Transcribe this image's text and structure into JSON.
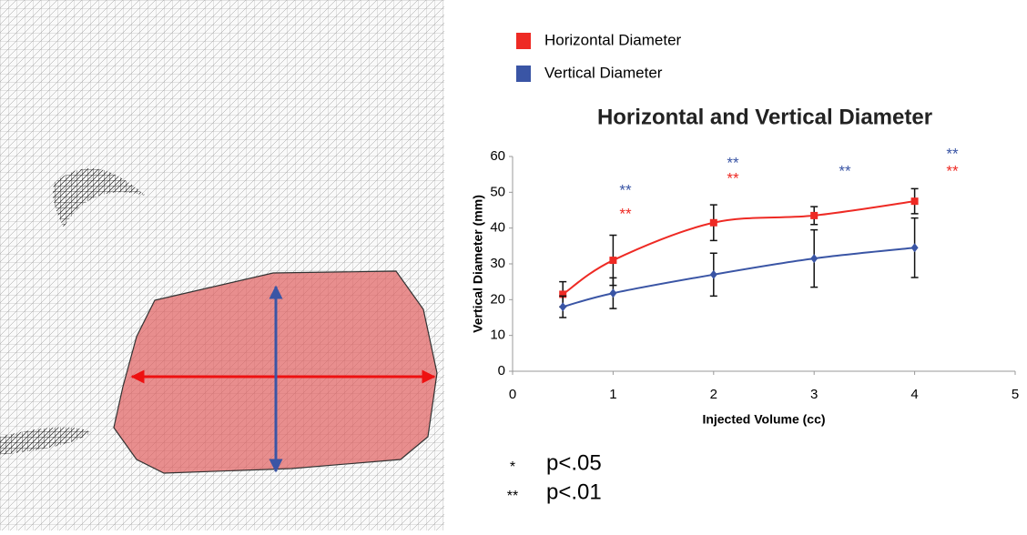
{
  "chart_data": {
    "type": "line",
    "title": "Horizontal and Vertical Diameter",
    "x_label": "Injected Volume (cc)",
    "y_label": "Vertical Diameter (mm)",
    "x": [
      0.5,
      1,
      2,
      3,
      4
    ],
    "series": [
      {
        "name": "Horizontal Diameter",
        "color": "#ee2a24",
        "marker": "square",
        "values": [
          21.5,
          31,
          41.5,
          43.5,
          47.5
        ],
        "errors": [
          3.5,
          7,
          5,
          2.5,
          3.5
        ]
      },
      {
        "name": "Vertical Diameter",
        "color": "#3a55a5",
        "marker": "diamond",
        "values": [
          18,
          21.8,
          27,
          31.5,
          34.5
        ],
        "errors": [
          3,
          4.3,
          6,
          8,
          8.3
        ]
      }
    ],
    "xlim": [
      0,
      5
    ],
    "xticks": [
      0,
      1,
      2,
      3,
      4,
      5
    ],
    "ylim": [
      0,
      60
    ],
    "yticks": [
      0,
      10,
      20,
      30,
      40,
      50,
      60
    ],
    "annotations": [
      {
        "text": "**",
        "color": "#3a55a5"
      },
      {
        "text": "**",
        "color": "#ee2a24"
      },
      {
        "text": "**",
        "color": "#3a55a5"
      },
      {
        "text": "**",
        "color": "#ee2a24"
      },
      {
        "text": "**",
        "color": "#3a55a5"
      },
      {
        "text": "**",
        "color": "#3a55a5"
      },
      {
        "text": "**",
        "color": "#ee2a24"
      }
    ],
    "significance": [
      {
        "symbol": "*",
        "label": "p<.05"
      },
      {
        "symbol": "**",
        "label": "p<.01"
      }
    ]
  }
}
